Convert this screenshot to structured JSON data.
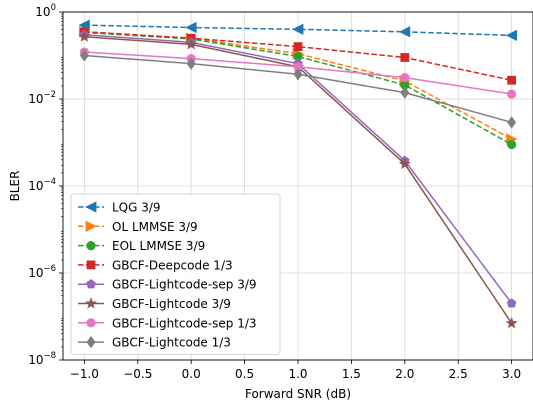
{
  "chart_data": {
    "type": "line",
    "title": "",
    "xlabel": "Forward SNR (dB)",
    "ylabel": "BLER",
    "x": [
      -1.0,
      0.0,
      1.0,
      2.0,
      3.0
    ],
    "xlim": [
      -1.2,
      3.2
    ],
    "ylim": [
      1e-08,
      1
    ],
    "yscale": "log",
    "grid": true,
    "legend_position": "lower-left",
    "x_ticks": [
      -1.0,
      -0.5,
      0.0,
      0.5,
      1.0,
      1.5,
      2.0,
      2.5,
      3.0
    ],
    "x_tick_labels": [
      "−1.0",
      "−0.5",
      "0.0",
      "0.5",
      "1.0",
      "1.5",
      "2.0",
      "2.5",
      "3.0"
    ],
    "y_ticks": [
      {
        "value": 1e-08,
        "base": "10",
        "exp": "−8"
      },
      {
        "value": 1e-06,
        "base": "10",
        "exp": "−6"
      },
      {
        "value": 0.0001,
        "base": "10",
        "exp": "−4"
      },
      {
        "value": 0.01,
        "base": "10",
        "exp": "−2"
      },
      {
        "value": 1,
        "base": "10",
        "exp": "0"
      }
    ],
    "series": [
      {
        "name": "LQG 3/9",
        "color": "#1f77b4",
        "dash": "dashed",
        "marker": "triangle-left",
        "values": [
          0.5,
          0.44,
          0.4,
          0.35,
          0.29
        ]
      },
      {
        "name": "OL LMMSE 3/9",
        "color": "#ff7f0e",
        "dash": "dashed",
        "marker": "triangle-right",
        "values": [
          0.35,
          0.25,
          0.11,
          0.026,
          0.0012
        ]
      },
      {
        "name": "EOL LMMSE 3/9",
        "color": "#2ca02c",
        "dash": "dashed",
        "marker": "circle",
        "values": [
          0.34,
          0.24,
          0.095,
          0.021,
          0.0009
        ]
      },
      {
        "name": "GBCF-Deepcode 1/3",
        "color": "#d62728",
        "dash": "dashed",
        "marker": "square",
        "values": [
          0.35,
          0.25,
          0.16,
          0.09,
          0.027
        ]
      },
      {
        "name": "GBCF-Lightcode-sep 3/9",
        "color": "#9467bd",
        "dash": "solid",
        "marker": "pentagon",
        "values": [
          0.3,
          0.2,
          0.065,
          0.00038,
          2e-07
        ]
      },
      {
        "name": "GBCF-Lightcode 3/9",
        "color": "#8c564b",
        "dash": "solid",
        "marker": "star",
        "values": [
          0.27,
          0.18,
          0.055,
          0.00032,
          7e-08
        ]
      },
      {
        "name": "GBCF-Lightcode-sep 1/3",
        "color": "#e377c2",
        "dash": "solid",
        "marker": "circle",
        "values": [
          0.12,
          0.085,
          0.055,
          0.031,
          0.013
        ]
      },
      {
        "name": "GBCF-Lightcode 1/3",
        "color": "#7f7f7f",
        "dash": "solid",
        "marker": "diamond",
        "values": [
          0.1,
          0.065,
          0.037,
          0.014,
          0.0029
        ]
      }
    ]
  }
}
